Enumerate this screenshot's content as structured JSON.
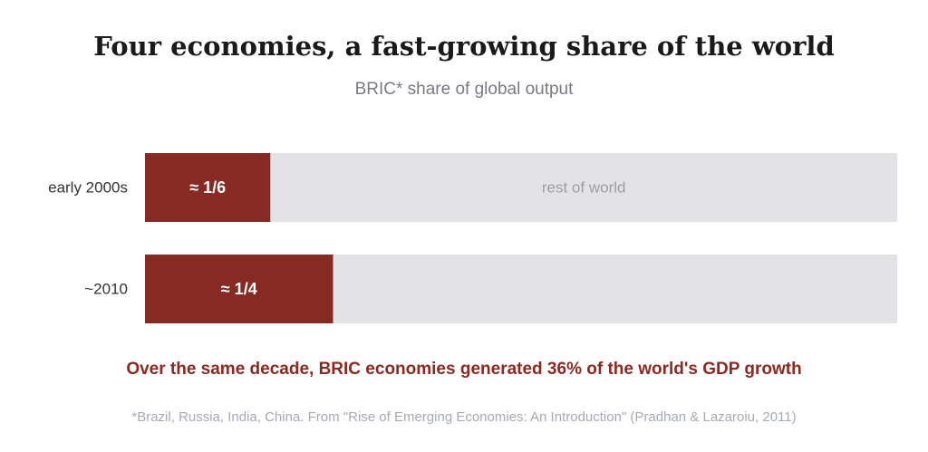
{
  "colors": {
    "accent": "#862a23",
    "rest": "#e3e3e6",
    "rest_text": "#9d9da8"
  },
  "chart_data": {
    "type": "bar",
    "orientation": "horizontal",
    "stacked": true,
    "title": "Four economies, a fast-growing share of the world",
    "subtitle": "BRIC* share of global output",
    "categories": [
      "early 2000s",
      "~2010"
    ],
    "series": [
      {
        "values": [
          0.1667,
          0.25
        ],
        "labels": [
          "≈ 1/6",
          "≈ 1/4"
        ]
      },
      {
        "values": [
          0.8333,
          0.75
        ],
        "labels": [
          "rest of world",
          ""
        ]
      }
    ],
    "xlim": [
      0,
      1
    ],
    "grid": false,
    "annotation": "Over the same decade, BRIC economies generated 36% of the world's GDP growth",
    "footnote": "*Brazil, Russia, India, China. From \"Rise of Emerging Economies: An Introduction\" (Pradhan & Lazaroiu, 2011)"
  }
}
